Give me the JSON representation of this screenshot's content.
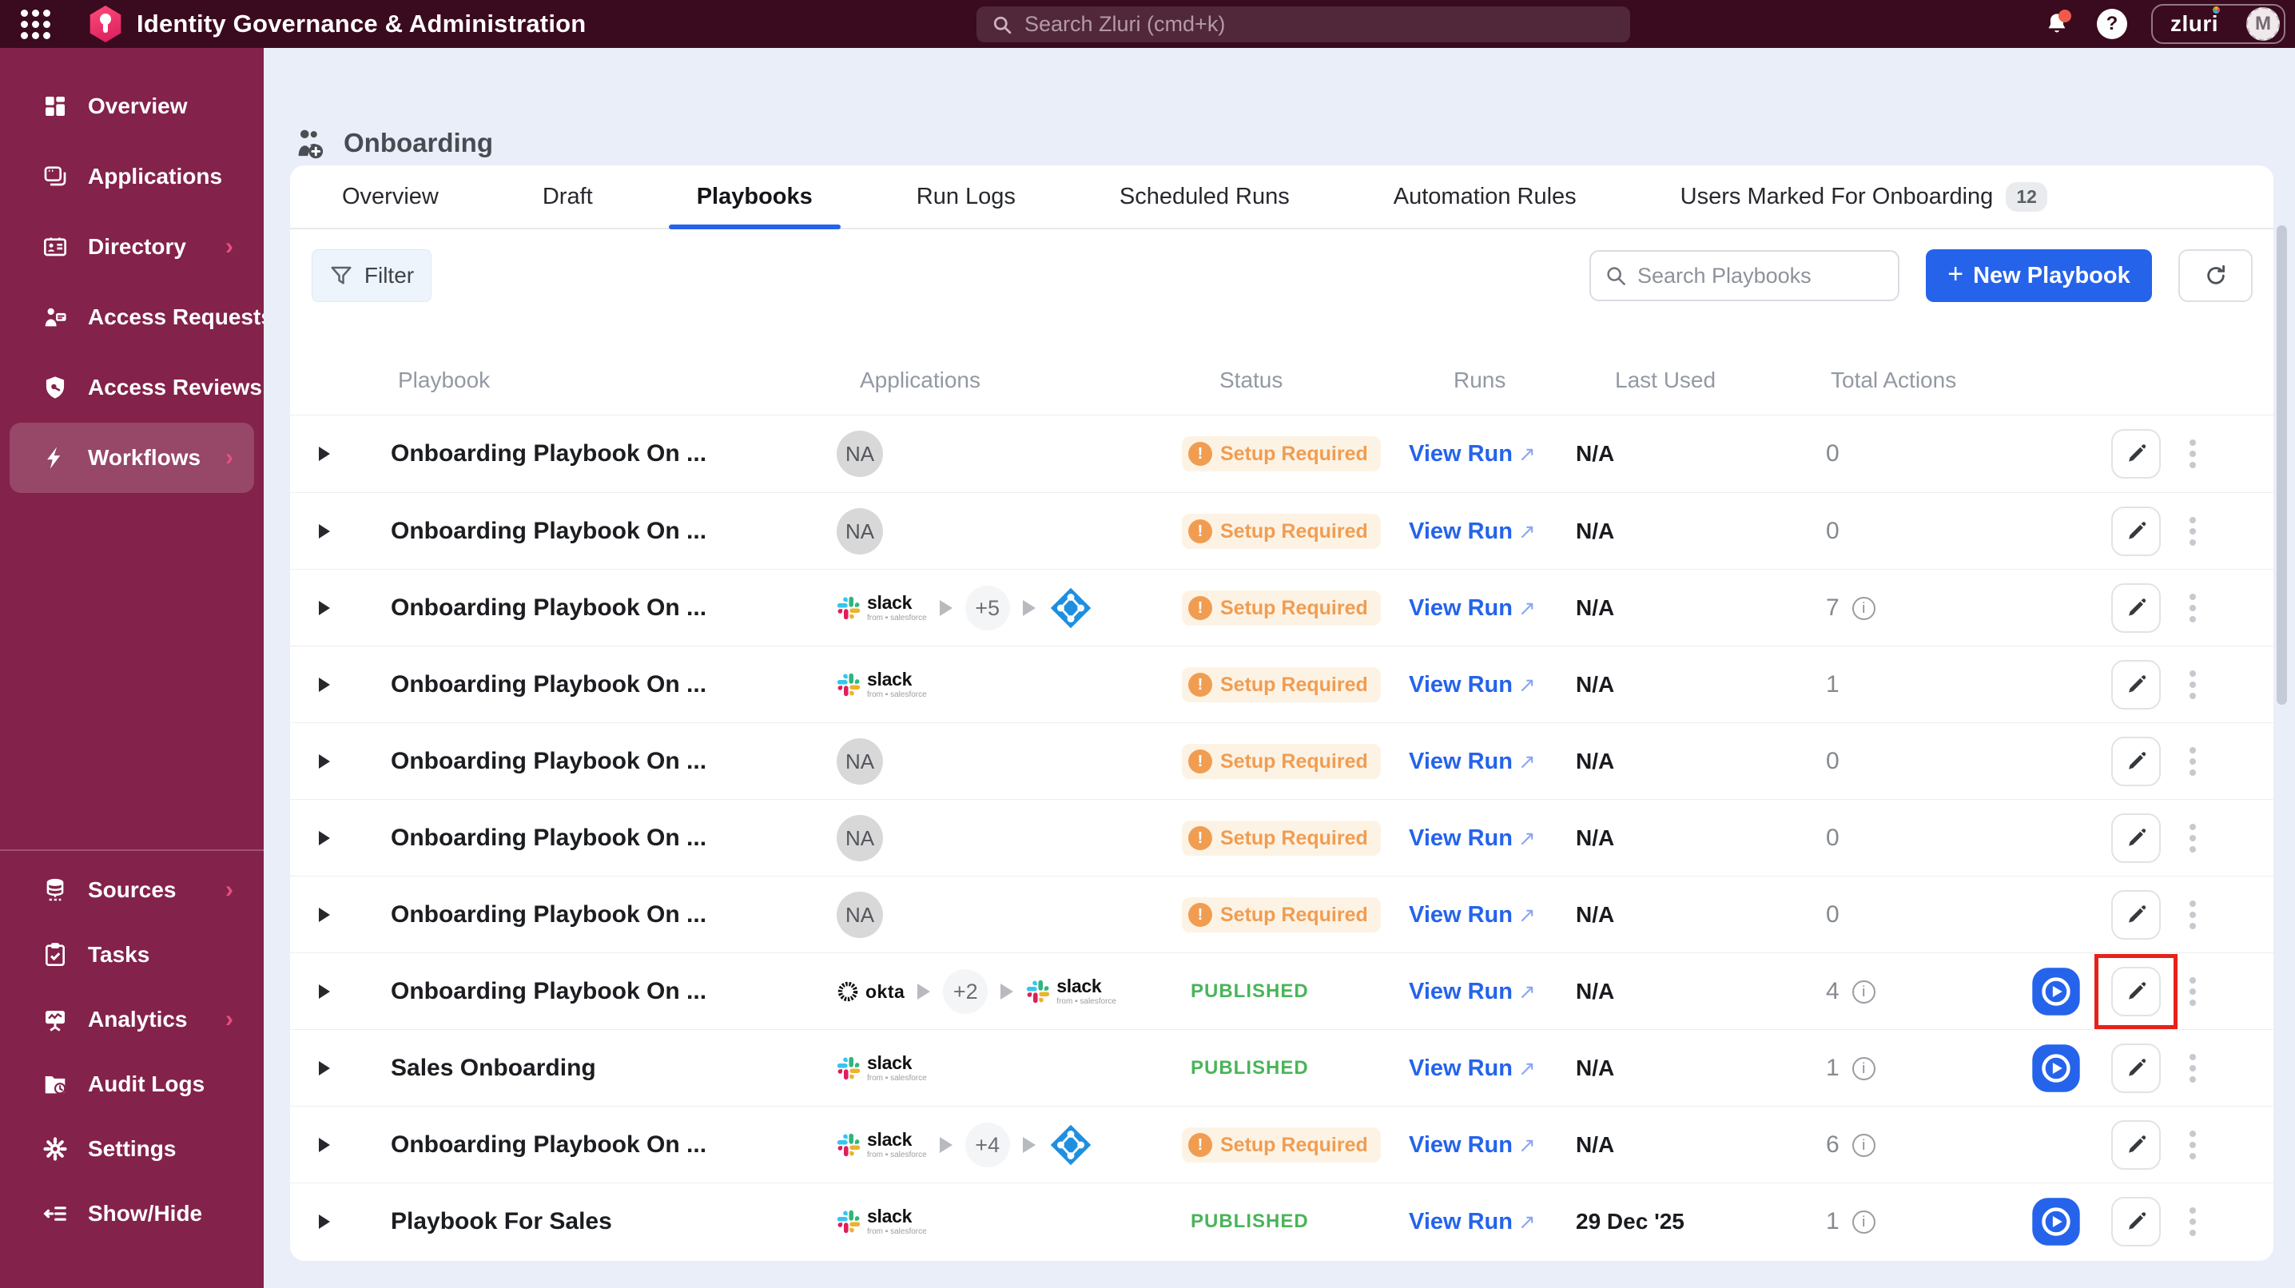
{
  "colors": {
    "topbar": "#3a0a1f",
    "sidebar": "#83224a",
    "accent_blue": "#2563eb",
    "published_green": "#4bb45a",
    "setup_orange": "#f09d52",
    "page_bg": "#e9eef9",
    "annotation_red": "#e8211a"
  },
  "header": {
    "app_title": "Identity Governance & Administration",
    "search_placeholder": "Search Zluri (cmd+k)",
    "brand": "zluri",
    "avatar_initial": "M"
  },
  "sidebar": {
    "main_items": [
      {
        "label": "Overview",
        "icon": "overview",
        "chevron": false,
        "active": false
      },
      {
        "label": "Applications",
        "icon": "applications",
        "chevron": false,
        "active": false
      },
      {
        "label": "Directory",
        "icon": "directory",
        "chevron": true,
        "active": false
      },
      {
        "label": "Access Requests",
        "icon": "access-requests",
        "chevron": false,
        "active": false
      },
      {
        "label": "Access Reviews",
        "icon": "access-reviews",
        "chevron": false,
        "active": false
      },
      {
        "label": "Workflows",
        "icon": "workflows",
        "chevron": true,
        "active": true
      }
    ],
    "secondary_items": [
      {
        "label": "Sources",
        "icon": "sources",
        "chevron": true,
        "active": false
      },
      {
        "label": "Tasks",
        "icon": "tasks",
        "chevron": false,
        "active": false
      },
      {
        "label": "Analytics",
        "icon": "analytics",
        "chevron": true,
        "active": false
      },
      {
        "label": "Audit Logs",
        "icon": "audit-logs",
        "chevron": false,
        "active": false
      },
      {
        "label": "Settings",
        "icon": "settings",
        "chevron": false,
        "active": false
      },
      {
        "label": "Show/Hide",
        "icon": "show-hide",
        "chevron": false,
        "active": false
      }
    ]
  },
  "page": {
    "title": "Onboarding"
  },
  "tabs": [
    {
      "label": "Overview",
      "active": false
    },
    {
      "label": "Draft",
      "active": false
    },
    {
      "label": "Playbooks",
      "active": true
    },
    {
      "label": "Run Logs",
      "active": false
    },
    {
      "label": "Scheduled Runs",
      "active": false
    },
    {
      "label": "Automation Rules",
      "active": false
    },
    {
      "label": "Users Marked For Onboarding",
      "active": false,
      "badge": "12"
    }
  ],
  "toolbar": {
    "filter_label": "Filter",
    "search_placeholder": "Search Playbooks",
    "new_playbook_label": "New Playbook"
  },
  "table": {
    "columns": [
      "Playbook",
      "Applications",
      "Status",
      "Runs",
      "Last Used",
      "Total Actions"
    ],
    "rows": [
      {
        "name": "Onboarding Playbook On ...",
        "apps": [
          {
            "kind": "na",
            "label": "NA"
          }
        ],
        "status": {
          "type": "setup_required",
          "label": "Setup Required"
        },
        "run_label": "View Run",
        "last_used": "N/A",
        "total_actions": "0",
        "info": false,
        "play": false,
        "highlight": false
      },
      {
        "name": "Onboarding Playbook On ...",
        "apps": [
          {
            "kind": "na",
            "label": "NA"
          }
        ],
        "status": {
          "type": "setup_required",
          "label": "Setup Required"
        },
        "run_label": "View Run",
        "last_used": "N/A",
        "total_actions": "0",
        "info": false,
        "play": false,
        "highlight": false
      },
      {
        "name": "Onboarding Playbook On ...",
        "apps": [
          {
            "kind": "slack",
            "label": "slack"
          },
          {
            "kind": "count",
            "label": "+5"
          },
          {
            "kind": "azure-ad",
            "label": "azure-ad"
          }
        ],
        "status": {
          "type": "setup_required",
          "label": "Setup Required"
        },
        "run_label": "View Run",
        "last_used": "N/A",
        "total_actions": "7",
        "info": true,
        "play": false,
        "highlight": false
      },
      {
        "name": "Onboarding Playbook On ...",
        "apps": [
          {
            "kind": "slack",
            "label": "slack"
          }
        ],
        "status": {
          "type": "setup_required",
          "label": "Setup Required"
        },
        "run_label": "View Run",
        "last_used": "N/A",
        "total_actions": "1",
        "info": false,
        "play": false,
        "highlight": false
      },
      {
        "name": "Onboarding Playbook On ...",
        "apps": [
          {
            "kind": "na",
            "label": "NA"
          }
        ],
        "status": {
          "type": "setup_required",
          "label": "Setup Required"
        },
        "run_label": "View Run",
        "last_used": "N/A",
        "total_actions": "0",
        "info": false,
        "play": false,
        "highlight": false
      },
      {
        "name": "Onboarding Playbook On ...",
        "apps": [
          {
            "kind": "na",
            "label": "NA"
          }
        ],
        "status": {
          "type": "setup_required",
          "label": "Setup Required"
        },
        "run_label": "View Run",
        "last_used": "N/A",
        "total_actions": "0",
        "info": false,
        "play": false,
        "highlight": false
      },
      {
        "name": "Onboarding Playbook On ...",
        "apps": [
          {
            "kind": "na",
            "label": "NA"
          }
        ],
        "status": {
          "type": "setup_required",
          "label": "Setup Required"
        },
        "run_label": "View Run",
        "last_used": "N/A",
        "total_actions": "0",
        "info": false,
        "play": false,
        "highlight": false
      },
      {
        "name": "Onboarding Playbook On ...",
        "apps": [
          {
            "kind": "okta",
            "label": "okta"
          },
          {
            "kind": "count",
            "label": "+2"
          },
          {
            "kind": "slack",
            "label": "slack"
          }
        ],
        "status": {
          "type": "published",
          "label": "PUBLISHED"
        },
        "run_label": "View Run",
        "last_used": "N/A",
        "total_actions": "4",
        "info": true,
        "play": true,
        "highlight": true
      },
      {
        "name": "Sales Onboarding",
        "apps": [
          {
            "kind": "slack",
            "label": "slack"
          }
        ],
        "status": {
          "type": "published",
          "label": "PUBLISHED"
        },
        "run_label": "View Run",
        "last_used": "N/A",
        "total_actions": "1",
        "info": true,
        "play": true,
        "highlight": false
      },
      {
        "name": "Onboarding Playbook On ...",
        "apps": [
          {
            "kind": "slack",
            "label": "slack"
          },
          {
            "kind": "count",
            "label": "+4"
          },
          {
            "kind": "azure-ad",
            "label": "azure-ad"
          }
        ],
        "status": {
          "type": "setup_required",
          "label": "Setup Required"
        },
        "run_label": "View Run",
        "last_used": "N/A",
        "total_actions": "6",
        "info": true,
        "play": false,
        "highlight": false
      },
      {
        "name": "Playbook For Sales",
        "apps": [
          {
            "kind": "slack",
            "label": "slack"
          }
        ],
        "status": {
          "type": "published",
          "label": "PUBLISHED"
        },
        "run_label": "View Run",
        "last_used": "29 Dec '25",
        "total_actions": "1",
        "info": true,
        "play": true,
        "highlight": false
      }
    ]
  },
  "annotation": {
    "type": "highlight-box",
    "target": "edit-button-row-8"
  }
}
